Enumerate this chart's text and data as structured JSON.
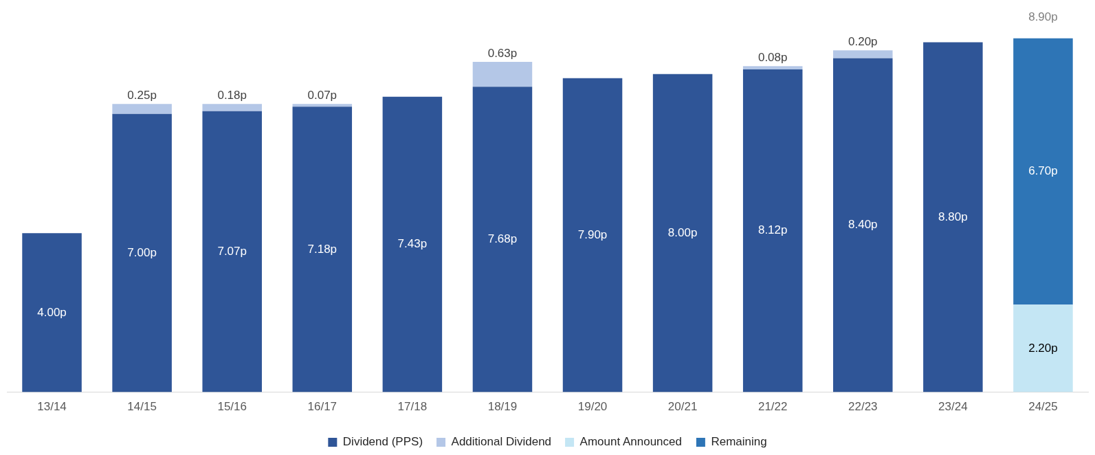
{
  "chart_data": {
    "type": "bar",
    "stacked": true,
    "legend": "bottom",
    "grid": false,
    "categories": [
      "13/14",
      "14/15",
      "15/16",
      "16/17",
      "17/18",
      "18/19",
      "19/20",
      "20/21",
      "21/22",
      "22/23",
      "23/24",
      "24/25"
    ],
    "series": [
      {
        "name": "Dividend (PPS)",
        "color": "#2f5597",
        "values": [
          4.0,
          7.0,
          7.07,
          7.18,
          7.43,
          7.68,
          7.9,
          8.0,
          8.12,
          8.4,
          8.8,
          null
        ],
        "value_labels": [
          "4.00p",
          "7.00p",
          "7.07p",
          "7.18p",
          "7.43p",
          "7.68p",
          "7.90p",
          "8.00p",
          "8.12p",
          "8.40p",
          "8.80p",
          null
        ]
      },
      {
        "name": "Additional Dividend",
        "color": "#b4c7e7",
        "values": [
          null,
          0.25,
          0.18,
          0.07,
          null,
          0.63,
          null,
          null,
          0.08,
          0.2,
          null,
          null
        ],
        "value_labels": [
          null,
          "0.25p",
          "0.18p",
          "0.07p",
          null,
          "0.63p",
          null,
          null,
          "0.08p",
          "0.20p",
          null,
          null
        ]
      },
      {
        "name": "Amount Announced",
        "color": "#c4e6f4",
        "values": [
          null,
          null,
          null,
          null,
          null,
          null,
          null,
          null,
          null,
          null,
          null,
          2.2
        ],
        "value_labels": [
          null,
          null,
          null,
          null,
          null,
          null,
          null,
          null,
          null,
          null,
          null,
          "2.20p"
        ]
      },
      {
        "name": "Remaining",
        "color": "#2e75b6",
        "values": [
          null,
          null,
          null,
          null,
          null,
          null,
          null,
          null,
          null,
          null,
          null,
          6.7
        ],
        "value_labels": [
          null,
          null,
          null,
          null,
          null,
          null,
          null,
          null,
          null,
          null,
          null,
          "6.70p"
        ]
      }
    ],
    "totals": [
      null,
      null,
      null,
      null,
      null,
      null,
      null,
      null,
      null,
      null,
      null,
      "8.90p"
    ]
  }
}
